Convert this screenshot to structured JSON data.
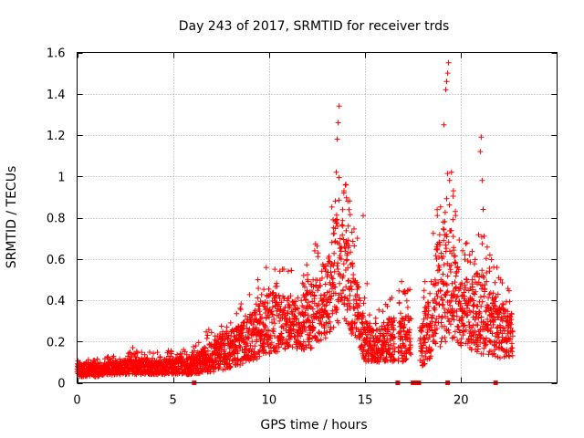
{
  "chart_data": {
    "type": "scatter",
    "title": "Day 243 of 2017, SRMTID for receiver trds",
    "xlabel": "GPS time / hours",
    "ylabel": "SRMTID / TECUs",
    "xlim": [
      0,
      25
    ],
    "ylim": [
      0,
      1.6
    ],
    "grid": true,
    "legend": "none",
    "marker": "+",
    "color": "#ff0000",
    "x_ticks": [
      0,
      5,
      10,
      15,
      20
    ],
    "x_tick_labels": [
      "0",
      "5",
      "10",
      "15",
      "20"
    ],
    "y_ticks": [
      0,
      0.2,
      0.4,
      0.6,
      0.8,
      1.0,
      1.2,
      1.4,
      1.6
    ],
    "y_tick_labels": [
      "0",
      "0.2",
      "0.4",
      "0.6",
      "0.8",
      "1",
      "1.2",
      "1.4",
      "1.6"
    ],
    "envelope": {
      "note": "approximate typical level (low, high) of the dense point cloud vs GPS time",
      "x": [
        0,
        1,
        2,
        3,
        4,
        5,
        6,
        7,
        8,
        9,
        10,
        11,
        12,
        13,
        13.5,
        14,
        14.5,
        15,
        15.5,
        16,
        17,
        18,
        18.5,
        19,
        19.5,
        20,
        21,
        22,
        22.7
      ],
      "low": [
        0.03,
        0.03,
        0.04,
        0.04,
        0.04,
        0.04,
        0.04,
        0.05,
        0.07,
        0.1,
        0.14,
        0.16,
        0.15,
        0.22,
        0.28,
        0.28,
        0.2,
        0.1,
        0.1,
        0.1,
        0.1,
        0.08,
        0.12,
        0.18,
        0.22,
        0.18,
        0.14,
        0.12,
        0.12
      ],
      "high": [
        0.1,
        0.09,
        0.1,
        0.12,
        0.11,
        0.12,
        0.13,
        0.2,
        0.25,
        0.32,
        0.45,
        0.42,
        0.45,
        0.6,
        0.8,
        0.75,
        0.55,
        0.3,
        0.25,
        0.3,
        0.35,
        0.3,
        0.55,
        0.8,
        0.75,
        0.5,
        0.55,
        0.4,
        0.35
      ]
    },
    "spikes": [
      [
        13.35,
        0.75
      ],
      [
        13.45,
        0.88
      ],
      [
        13.5,
        1.02
      ],
      [
        13.55,
        1.18
      ],
      [
        13.6,
        1.26
      ],
      [
        13.65,
        1.34
      ],
      [
        13.9,
        0.93
      ],
      [
        14.0,
        0.96
      ],
      [
        14.1,
        0.88
      ],
      [
        14.9,
        0.81
      ],
      [
        14.6,
        0.7
      ],
      [
        19.1,
        1.25
      ],
      [
        19.2,
        1.42
      ],
      [
        19.25,
        1.46
      ],
      [
        19.3,
        1.5
      ],
      [
        19.35,
        1.55
      ],
      [
        19.5,
        1.02
      ],
      [
        19.6,
        0.93
      ],
      [
        19.4,
        0.98
      ],
      [
        19.7,
        0.83
      ],
      [
        21.0,
        1.12
      ],
      [
        21.05,
        1.19
      ],
      [
        21.1,
        0.98
      ],
      [
        21.15,
        0.84
      ],
      [
        21.2,
        0.71
      ],
      [
        10.3,
        0.55
      ],
      [
        10.7,
        0.55
      ],
      [
        11.0,
        0.54
      ],
      [
        11.8,
        0.52
      ],
      [
        12.0,
        0.5
      ],
      [
        16.9,
        0.49
      ],
      [
        17.0,
        0.44
      ],
      [
        15.1,
        0.48
      ],
      [
        20.2,
        0.62
      ],
      [
        20.35,
        0.59
      ],
      [
        2.9,
        0.17
      ],
      [
        6.8,
        0.23
      ],
      [
        7.8,
        0.27
      ],
      [
        8.0,
        0.29
      ],
      [
        16.2,
        0.28
      ],
      [
        16.4,
        0.27
      ]
    ],
    "zero_markers": [
      6.1,
      16.7,
      17.5,
      17.65,
      17.8,
      19.3,
      21.8
    ]
  }
}
